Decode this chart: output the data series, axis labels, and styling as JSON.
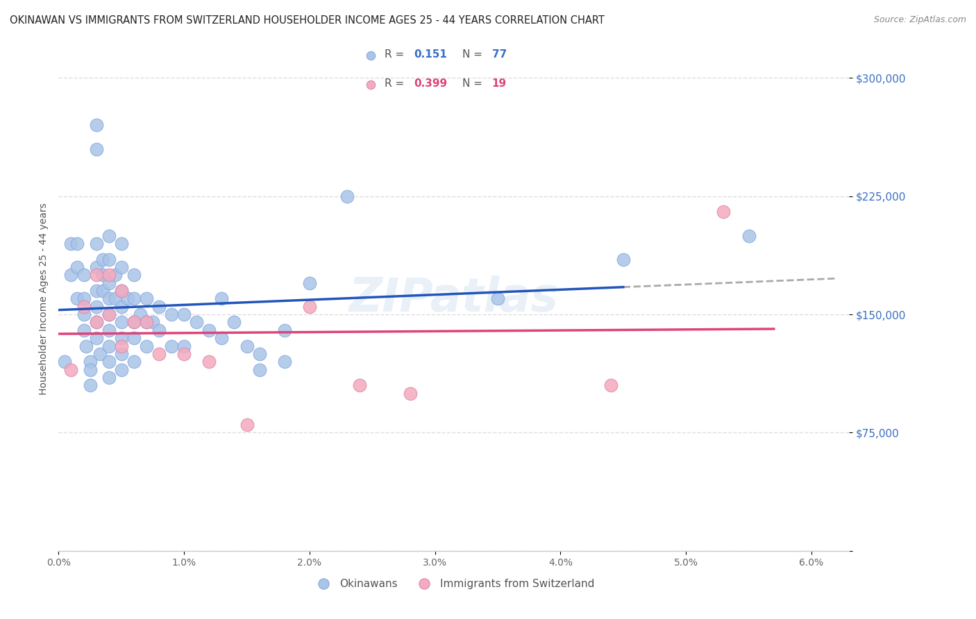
{
  "title": "OKINAWAN VS IMMIGRANTS FROM SWITZERLAND HOUSEHOLDER INCOME AGES 25 - 44 YEARS CORRELATION CHART",
  "source": "Source: ZipAtlas.com",
  "ylabel": "Householder Income Ages 25 - 44 years",
  "yticks": [
    0,
    75000,
    150000,
    225000,
    300000
  ],
  "ytick_labels": [
    "",
    "$75,000",
    "$150,000",
    "$225,000",
    "$300,000"
  ],
  "legend1_R": "0.151",
  "legend1_N": "77",
  "legend2_R": "0.399",
  "legend2_N": "19",
  "color_blue": "#aac4e8",
  "color_pink": "#f4aabf",
  "color_blue_line": "#2255bb",
  "color_pink_line": "#dd4477",
  "color_dashed": "#aaaaaa",
  "watermark": "ZIPatlas",
  "blue_x": [
    0.0005,
    0.001,
    0.001,
    0.0015,
    0.0015,
    0.0015,
    0.002,
    0.002,
    0.002,
    0.002,
    0.0022,
    0.0025,
    0.0025,
    0.0025,
    0.003,
    0.003,
    0.003,
    0.003,
    0.003,
    0.003,
    0.003,
    0.003,
    0.0033,
    0.0035,
    0.0035,
    0.0035,
    0.004,
    0.004,
    0.004,
    0.004,
    0.004,
    0.004,
    0.004,
    0.004,
    0.004,
    0.0045,
    0.0045,
    0.005,
    0.005,
    0.005,
    0.005,
    0.005,
    0.005,
    0.005,
    0.005,
    0.0055,
    0.006,
    0.006,
    0.006,
    0.006,
    0.006,
    0.0065,
    0.007,
    0.007,
    0.007,
    0.0075,
    0.008,
    0.008,
    0.009,
    0.009,
    0.01,
    0.01,
    0.011,
    0.012,
    0.013,
    0.013,
    0.014,
    0.015,
    0.016,
    0.016,
    0.018,
    0.018,
    0.02,
    0.023,
    0.035,
    0.045,
    0.055
  ],
  "blue_y": [
    120000,
    195000,
    175000,
    195000,
    180000,
    160000,
    175000,
    160000,
    150000,
    140000,
    130000,
    120000,
    115000,
    105000,
    270000,
    255000,
    195000,
    180000,
    165000,
    155000,
    145000,
    135000,
    125000,
    185000,
    175000,
    165000,
    200000,
    185000,
    170000,
    160000,
    150000,
    140000,
    130000,
    120000,
    110000,
    175000,
    160000,
    195000,
    180000,
    165000,
    155000,
    145000,
    135000,
    125000,
    115000,
    160000,
    175000,
    160000,
    145000,
    135000,
    120000,
    150000,
    160000,
    145000,
    130000,
    145000,
    155000,
    140000,
    150000,
    130000,
    150000,
    130000,
    145000,
    140000,
    160000,
    135000,
    145000,
    130000,
    125000,
    115000,
    140000,
    120000,
    170000,
    225000,
    160000,
    185000,
    200000
  ],
  "pink_x": [
    0.001,
    0.002,
    0.003,
    0.003,
    0.004,
    0.004,
    0.005,
    0.005,
    0.006,
    0.007,
    0.008,
    0.01,
    0.012,
    0.015,
    0.02,
    0.024,
    0.028,
    0.044,
    0.053
  ],
  "pink_y": [
    115000,
    155000,
    175000,
    145000,
    175000,
    150000,
    165000,
    130000,
    145000,
    145000,
    125000,
    125000,
    120000,
    80000,
    155000,
    105000,
    100000,
    105000,
    215000
  ],
  "xmin": 0.0,
  "xmax": 0.063,
  "ymin": 0,
  "ymax": 320000
}
